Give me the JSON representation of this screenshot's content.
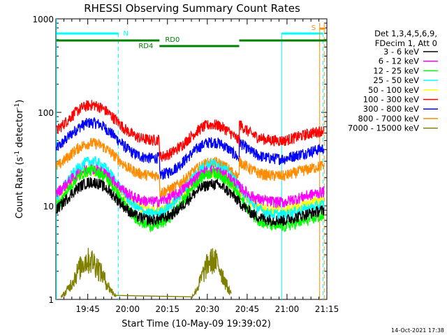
{
  "chart_data": {
    "type": "line",
    "title": "RHESSI Observing Summary Count Rates",
    "xlabel": "Start Time (10-May-09 19:39:02)",
    "ylabel_main": "Count Rate (s",
    "ylabel_sup1": "-1",
    "ylabel_mid": " detector",
    "ylabel_sup2": "-1",
    "ylabel_end": ")",
    "y_scale": "log",
    "ylim": [
      1,
      1000
    ],
    "xlim_minutes": [
      -6,
      96
    ],
    "x_ticks": [
      {
        "label": "19:45",
        "minutes": 6
      },
      {
        "label": "20:00",
        "minutes": 21
      },
      {
        "label": "20:15",
        "minutes": 36
      },
      {
        "label": "20:30",
        "minutes": 51
      },
      {
        "label": "20:45",
        "minutes": 66
      },
      {
        "label": "21:00",
        "minutes": 81
      },
      {
        "label": "21:15",
        "minutes": 96
      }
    ],
    "y_ticks": [
      {
        "label": "1",
        "value": 1
      },
      {
        "label": "10",
        "value": 10
      },
      {
        "label": "100",
        "value": 100
      },
      {
        "label": "1000",
        "value": 1000
      }
    ],
    "legend_header": [
      "Det 1,3,4,5,6,9,",
      "FDecim 1, Att 0"
    ],
    "legend_position": "top-right",
    "series": [
      {
        "name": "3 - 6 keV",
        "color": "#000000",
        "peak": 18,
        "base": 7
      },
      {
        "name": "6 - 12 keV",
        "color": "#ff00ff",
        "peak": 25,
        "base": 11
      },
      {
        "name": "12 - 25 keV",
        "color": "#00ff00",
        "peak": 24,
        "base": 6
      },
      {
        "name": "25 - 50 keV",
        "color": "#00ffff",
        "peak": 30,
        "base": 8
      },
      {
        "name": "50 - 100 keV",
        "color": "#ffff00",
        "peak": 24,
        "base": 9
      },
      {
        "name": "100 - 300 keV",
        "color": "#ff0000",
        "peak": 120,
        "base": 50
      },
      {
        "name": "300 - 800 keV",
        "color": "#0000ff",
        "peak": 78,
        "base": 32
      },
      {
        "name": "800 - 7000 keV",
        "color": "#ff8c00",
        "peak": 47,
        "base": 21
      },
      {
        "name": "7000 - 15000 keV",
        "color": "#808000",
        "peak": 3,
        "base": 1
      }
    ],
    "flags": {
      "night_label": "N",
      "saa_label": "S",
      "rd0_label": "RD0",
      "rd4_label": "RD4"
    },
    "timestamp": "14-Oct-2021 17:38"
  }
}
